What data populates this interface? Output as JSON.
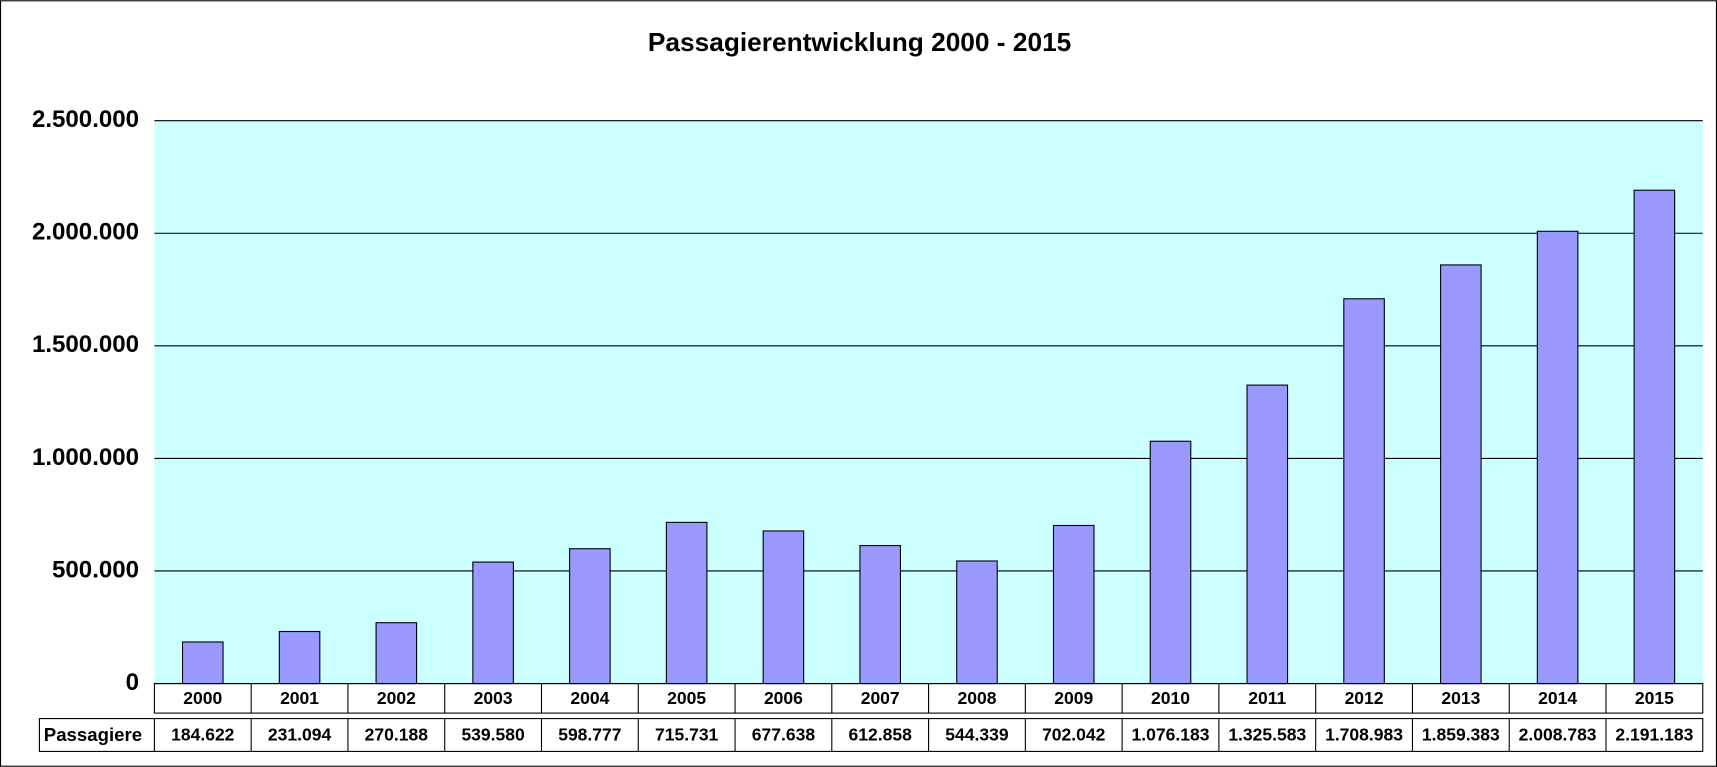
{
  "chart_data": {
    "type": "bar",
    "title": "Passagierentwicklung 2000 - 2015",
    "categories": [
      "2000",
      "2001",
      "2002",
      "2003",
      "2004",
      "2005",
      "2006",
      "2007",
      "2008",
      "2009",
      "2010",
      "2011",
      "2012",
      "2013",
      "2014",
      "2015"
    ],
    "series": [
      {
        "name": "Passagiere",
        "color": "#9999ff",
        "values": [
          184622,
          231094,
          270188,
          539580,
          598777,
          715731,
          677638,
          612858,
          544339,
          702042,
          1076183,
          1325583,
          1708983,
          1859383,
          2008783,
          2191183
        ],
        "value_labels": [
          "184.622",
          "231.094",
          "270.188",
          "539.580",
          "598.777",
          "715.731",
          "677.638",
          "612.858",
          "544.339",
          "702.042",
          "1.076.183",
          "1.325.583",
          "1.708.983",
          "1.859.383",
          "2.008.783",
          "2.191.183"
        ]
      }
    ],
    "ylim": [
      0,
      2500000
    ],
    "yticks": [
      0,
      {
        "value": 500000,
        "label": "500.000"
      },
      {
        "value": 1000000,
        "label": "1.000.000"
      },
      {
        "value": 1500000,
        "label": "1.500.000"
      },
      {
        "value": 2000000,
        "label": "2.000.000"
      },
      {
        "value": 2500000,
        "label": "2.500.000"
      }
    ],
    "grid": true,
    "plot_background": "#ccffff"
  }
}
